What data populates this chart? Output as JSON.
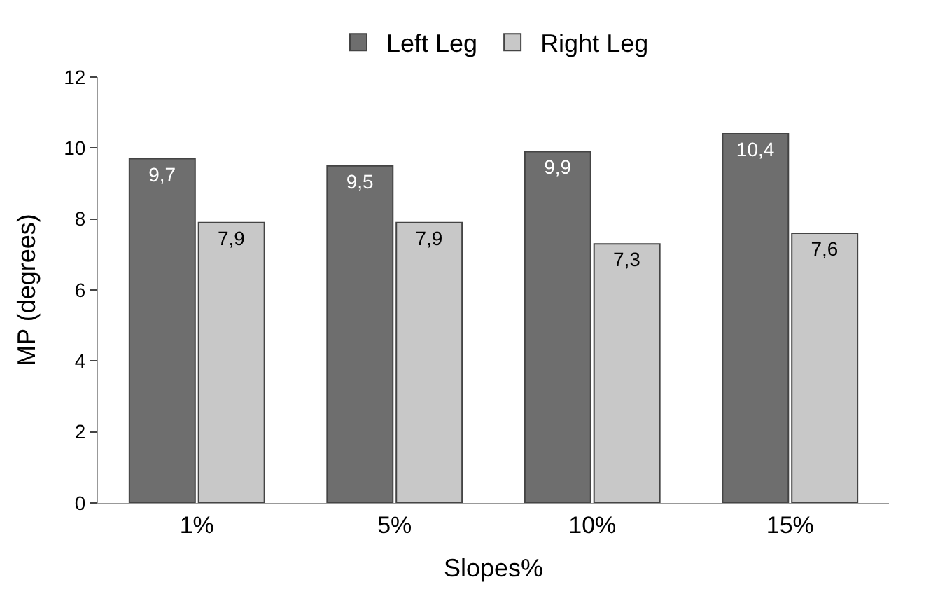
{
  "chart_data": {
    "type": "bar",
    "xlabel": "Slopes%",
    "ylabel": "MP (degrees)",
    "categories": [
      "1%",
      "5%",
      "10%",
      "15%"
    ],
    "series": [
      {
        "name": "Left Leg",
        "color": "#6e6e6e",
        "values": [
          9.7,
          9.5,
          9.9,
          10.4
        ],
        "value_labels": [
          "9,7",
          "9,5",
          "9,9",
          "10,4"
        ]
      },
      {
        "name": "Right Leg",
        "color": "#c8c8c8",
        "values": [
          7.9,
          7.9,
          7.3,
          7.6
        ],
        "value_labels": [
          "7,9",
          "7,9",
          "7,3",
          "7,6"
        ]
      }
    ],
    "ylim": [
      0,
      12
    ],
    "yticks": [
      0,
      2,
      4,
      6,
      8,
      10,
      12
    ],
    "legend": "top"
  }
}
